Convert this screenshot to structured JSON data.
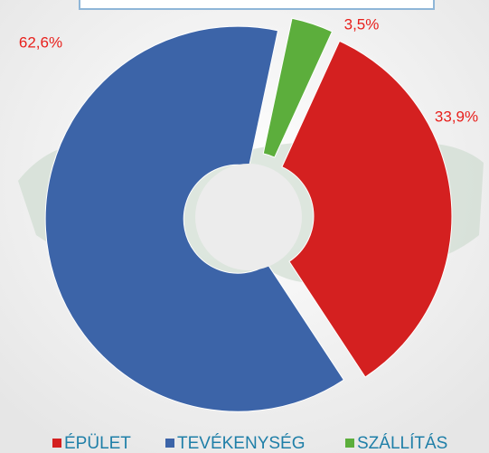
{
  "chart_data": {
    "type": "pie",
    "categories": [
      "ÉPÜLET",
      "TEVÉKENYSÉG",
      "SZÁLLÍTÁS"
    ],
    "values": [
      33.9,
      62.6,
      3.5
    ],
    "value_labels": [
      "33,9%",
      "62,6%",
      "3,5%"
    ],
    "colors": [
      "#d42020",
      "#3c64a8",
      "#5cae3c"
    ],
    "donut": true
  }
}
